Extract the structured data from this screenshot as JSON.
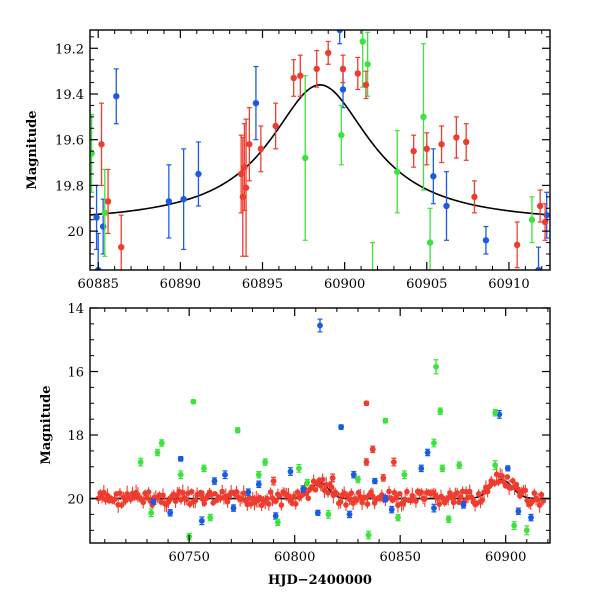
{
  "colors": {
    "series": {
      "blue": "#1a5be6",
      "green": "#3de33d",
      "red": "#f03c2e"
    },
    "model": "#000000"
  },
  "chart_data": [
    {
      "id": "top",
      "type": "scatter",
      "title": "",
      "xlabel": "",
      "ylabel": "Magnitude",
      "xlim": [
        60884.5,
        60912.5
      ],
      "ylim": [
        20.17,
        19.12
      ],
      "y_inverted": true,
      "xticks": [
        60885,
        60890,
        60895,
        60900,
        60905,
        60910
      ],
      "yticks": [
        19.2,
        19.4,
        19.6,
        19.8,
        20
      ],
      "ytick_labels": [
        "19.2",
        "19.4",
        "19.6",
        "19.8",
        "20"
      ],
      "model_curve": {
        "type": "lorentzian",
        "x0": 60898.5,
        "peak": 19.36,
        "base": 19.97,
        "fwhm": 7.5
      },
      "series": [
        {
          "color": "blue",
          "points": [
            [
              60884.9,
              19.94,
              0.14
            ],
            [
              60885.0,
              20.17,
              0.16
            ],
            [
              60885.3,
              19.98,
              0.12
            ],
            [
              60886.1,
              19.41,
              0.12
            ],
            [
              60889.3,
              19.87,
              0.16
            ],
            [
              60890.2,
              19.86,
              0.22
            ],
            [
              60891.1,
              19.75,
              0.14
            ],
            [
              60894.6,
              19.44,
              0.16
            ],
            [
              60899.7,
              19.12,
              0.06
            ],
            [
              60899.9,
              19.38,
              0.08
            ],
            [
              60905.4,
              19.76,
              0.12
            ],
            [
              60906.2,
              19.89,
              0.15
            ],
            [
              60908.6,
              20.04,
              0.06
            ],
            [
              60911.8,
              20.17,
              0.1
            ],
            [
              60912.3,
              19.93,
              0.1
            ]
          ]
        },
        {
          "color": "green",
          "points": [
            [
              60884.6,
              19.66,
              0.17
            ],
            [
              60885.4,
              19.92,
              0.19
            ],
            [
              60897.6,
              19.68,
              0.36
            ],
            [
              60899.8,
              19.58,
              0.13
            ],
            [
              60901.1,
              19.17,
              0.2
            ],
            [
              60901.4,
              19.27,
              0.14
            ],
            [
              60901.7,
              20.2,
              0.15
            ],
            [
              60903.2,
              19.74,
              0.18
            ],
            [
              60904.8,
              19.5,
              0.32
            ],
            [
              60905.2,
              20.05,
              0.15
            ],
            [
              60911.4,
              19.95,
              0.1
            ]
          ]
        },
        {
          "color": "red",
          "points": [
            [
              60885.2,
              19.62,
              0.18
            ],
            [
              60885.6,
              19.87,
              0.14
            ],
            [
              60886.4,
              20.07,
              0.14
            ],
            [
              60893.7,
              19.75,
              0.17
            ],
            [
              60893.8,
              19.85,
              0.26
            ],
            [
              60893.9,
              19.72,
              0.19
            ],
            [
              60894.0,
              19.81,
              0.3
            ],
            [
              60894.2,
              19.62,
              0.16
            ],
            [
              60894.9,
              19.64,
              0.1
            ],
            [
              60895.8,
              19.54,
              0.1
            ],
            [
              60896.9,
              19.33,
              0.08
            ],
            [
              60897.3,
              19.32,
              0.09
            ],
            [
              60898.3,
              19.29,
              0.08
            ],
            [
              60899.0,
              19.22,
              0.05
            ],
            [
              60899.9,
              19.29,
              0.06
            ],
            [
              60900.8,
              19.31,
              0.07
            ],
            [
              60901.3,
              19.36,
              0.06
            ],
            [
              60904.2,
              19.65,
              0.07
            ],
            [
              60905.0,
              19.64,
              0.07
            ],
            [
              60905.9,
              19.62,
              0.08
            ],
            [
              60906.8,
              19.59,
              0.09
            ],
            [
              60907.4,
              19.61,
              0.08
            ],
            [
              60907.9,
              19.85,
              0.07
            ],
            [
              60910.5,
              20.06,
              0.1
            ],
            [
              60911.9,
              19.89,
              0.07
            ],
            [
              60912.2,
              19.96,
              0.08
            ]
          ]
        }
      ]
    },
    {
      "id": "bottom",
      "type": "scatter",
      "title": "",
      "xlabel": "HJD−2400000",
      "ylabel": "Magnitude",
      "xlim": [
        60703,
        60921
      ],
      "ylim": [
        21.4,
        14.0
      ],
      "y_inverted": true,
      "xticks": [
        60750,
        60800,
        60850,
        60900
      ],
      "yticks": [
        14,
        16,
        18,
        20
      ],
      "ytick_labels": [
        "14",
        "16",
        "18",
        "20"
      ],
      "baseline_mag": 20.0,
      "flares": [
        {
          "x0": 60812,
          "width": 4,
          "depth": 0.5
        },
        {
          "x0": 60898,
          "width": 5,
          "depth": 0.6
        }
      ],
      "series": [
        {
          "color": "blue",
          "points": [
            [
              60812,
              14.55,
              0.2
            ],
            [
              60822,
              17.75,
              0.07
            ],
            [
              60746,
              18.75,
              0.07
            ],
            [
              60762,
              19.45,
              0.1
            ],
            [
              60767,
              19.25,
              0.12
            ],
            [
              60783,
              19.55,
              0.1
            ],
            [
              60798,
              19.15,
              0.12
            ],
            [
              60828,
              19.25,
              0.1
            ],
            [
              60838,
              19.45,
              0.08
            ],
            [
              60860,
              19.05,
              0.1
            ],
            [
              60863,
              18.55,
              0.1
            ],
            [
              60897,
              17.35,
              0.12
            ],
            [
              60901,
              19.05,
              0.08
            ],
            [
              60741,
              20.45,
              0.1
            ],
            [
              60756,
              20.7,
              0.12
            ],
            [
              60771,
              20.3,
              0.1
            ],
            [
              60791,
              20.55,
              0.1
            ],
            [
              60811,
              20.45,
              0.08
            ],
            [
              60826,
              20.5,
              0.1
            ],
            [
              60846,
              20.35,
              0.1
            ],
            [
              60866,
              20.3,
              0.12
            ],
            [
              60906,
              20.4,
              0.1
            ],
            [
              60912,
              20.6,
              0.1
            ],
            [
              60733,
              20.1,
              0.08
            ],
            [
              60778,
              19.8,
              0.1
            ],
            [
              60804,
              19.7,
              0.1
            ],
            [
              60843,
              20.0,
              0.1
            ],
            [
              60880,
              20.2,
              0.1
            ]
          ]
        },
        {
          "color": "green",
          "points": [
            [
              60752,
              16.95,
              0.06
            ],
            [
              60737,
              18.25,
              0.1
            ],
            [
              60773,
              17.85,
              0.08
            ],
            [
              60727,
              18.85,
              0.12
            ],
            [
              60735,
              18.55,
              0.1
            ],
            [
              60843,
              17.55,
              0.07
            ],
            [
              60867,
              15.85,
              0.22
            ],
            [
              60869,
              17.25,
              0.1
            ],
            [
              60866,
              18.25,
              0.12
            ],
            [
              60895,
              17.3,
              0.1
            ],
            [
              60895,
              18.95,
              0.14
            ],
            [
              60746,
              19.25,
              0.12
            ],
            [
              60757,
              19.05,
              0.1
            ],
            [
              60783,
              19.25,
              0.1
            ],
            [
              60786,
              18.85,
              0.1
            ],
            [
              60802,
              19.05,
              0.12
            ],
            [
              60806,
              19.5,
              0.1
            ],
            [
              60830,
              19.4,
              0.1
            ],
            [
              60852,
              19.25,
              0.12
            ],
            [
              60870,
              19.05,
              0.1
            ],
            [
              60878,
              18.95,
              0.1
            ],
            [
              60732,
              20.45,
              0.12
            ],
            [
              60760,
              20.6,
              0.1
            ],
            [
              60792,
              20.75,
              0.1
            ],
            [
              60816,
              20.5,
              0.12
            ],
            [
              60849,
              20.6,
              0.1
            ],
            [
              60873,
              20.65,
              0.1
            ],
            [
              60904,
              20.85,
              0.12
            ],
            [
              60910,
              21.0,
              0.14
            ],
            [
              60750,
              21.2,
              0.1
            ],
            [
              60835,
              21.15,
              0.12
            ]
          ]
        },
        {
          "color": "red",
          "points": [
            [
              60834,
              17.0,
              0.06
            ],
            [
              60834,
              18.85,
              0.1
            ],
            [
              60837,
              18.45,
              0.1
            ],
            [
              60847,
              18.85,
              0.12
            ],
            [
              60842,
              19.35,
              0.1
            ],
            [
              60818,
              19.35,
              0.12
            ],
            [
              60756,
              19.85,
              0.08
            ],
            [
              60790,
              19.45,
              0.12
            ]
          ]
        }
      ]
    }
  ]
}
